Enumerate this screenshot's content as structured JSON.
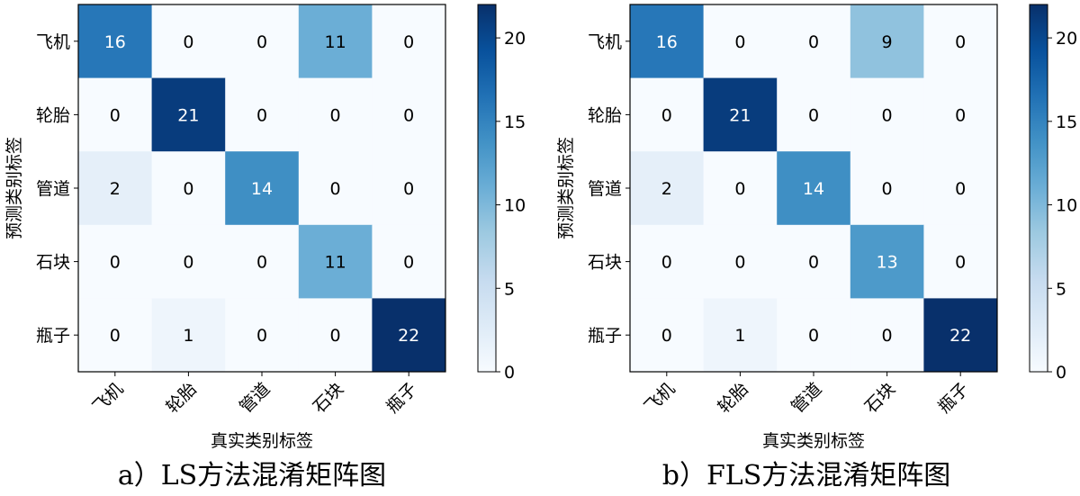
{
  "chart_data": [
    {
      "type": "heatmap",
      "caption": "a）LS方法混淆矩阵图",
      "xlabel": "真实类别标签",
      "ylabel": "预测类别标签",
      "x_categories": [
        "飞机",
        "轮胎",
        "管道",
        "石块",
        "瓶子"
      ],
      "y_categories": [
        "飞机",
        "轮胎",
        "管道",
        "石块",
        "瓶子"
      ],
      "values": [
        [
          16,
          0,
          0,
          11,
          0
        ],
        [
          0,
          21,
          0,
          0,
          0
        ],
        [
          2,
          0,
          14,
          0,
          0
        ],
        [
          0,
          0,
          0,
          11,
          0
        ],
        [
          0,
          1,
          0,
          0,
          22
        ]
      ],
      "colormap": "Blues",
      "vmin": 0,
      "vmax": 22,
      "colorbar_ticks": [
        0,
        5,
        10,
        15,
        20
      ]
    },
    {
      "type": "heatmap",
      "caption": "b）FLS方法混淆矩阵图",
      "xlabel": "真实类别标签",
      "ylabel": "预测类别标签",
      "x_categories": [
        "飞机",
        "轮胎",
        "管道",
        "石块",
        "瓶子"
      ],
      "y_categories": [
        "飞机",
        "轮胎",
        "管道",
        "石块",
        "瓶子"
      ],
      "values": [
        [
          16,
          0,
          0,
          9,
          0
        ],
        [
          0,
          21,
          0,
          0,
          0
        ],
        [
          2,
          0,
          14,
          0,
          0
        ],
        [
          0,
          0,
          0,
          13,
          0
        ],
        [
          0,
          1,
          0,
          0,
          22
        ]
      ],
      "colormap": "Blues",
      "vmin": 0,
      "vmax": 22,
      "colorbar_ticks": [
        0,
        5,
        10,
        15,
        20
      ]
    }
  ]
}
